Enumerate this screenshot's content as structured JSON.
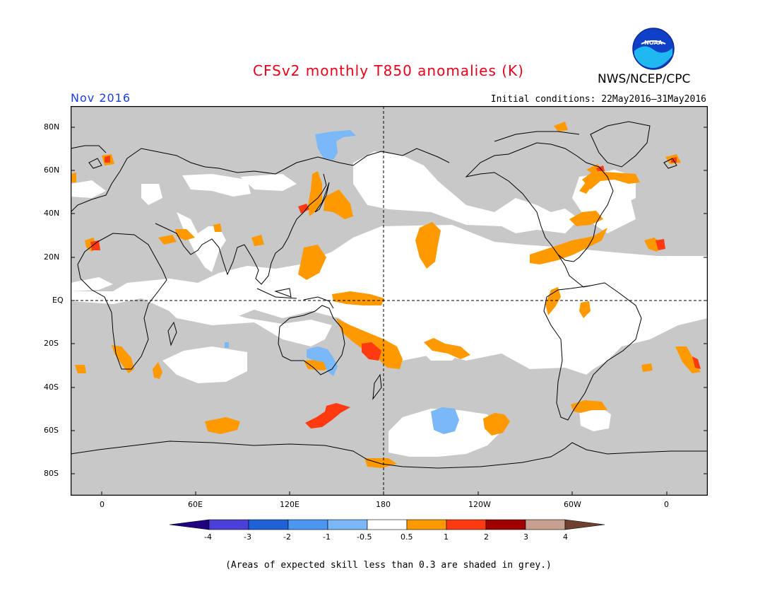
{
  "header": {
    "title": "CFSv2 monthly T850 anomalies (K)",
    "agency": "NWS/NCEP/CPC",
    "month": "Nov 2016",
    "initial_conditions": "Initial conditions: 22May2016–31May2016",
    "logo_text": "NOAA"
  },
  "axes": {
    "lat_labels": [
      "80N",
      "60N",
      "40N",
      "20N",
      "EQ",
      "20S",
      "40S",
      "60S",
      "80S"
    ],
    "lon_labels": [
      "0",
      "60E",
      "120E",
      "180",
      "120W",
      "60W",
      "0"
    ]
  },
  "legend": {
    "labels": [
      "-4",
      "-3",
      "-2",
      "-1",
      "-0.5",
      "0.5",
      "1",
      "2",
      "3",
      "4"
    ],
    "colors": [
      "#1f0080",
      "#4a3fd8",
      "#1f62d8",
      "#4a96f0",
      "#7ab8f8",
      "#ffffff",
      "#ff9900",
      "#ff3a10",
      "#a00000",
      "#c8a090",
      "#6e4030"
    ],
    "skill_color": "#c8c8c8"
  },
  "footnote": "(Areas of expected skill less than 0.3 are shaded in grey.)"
}
